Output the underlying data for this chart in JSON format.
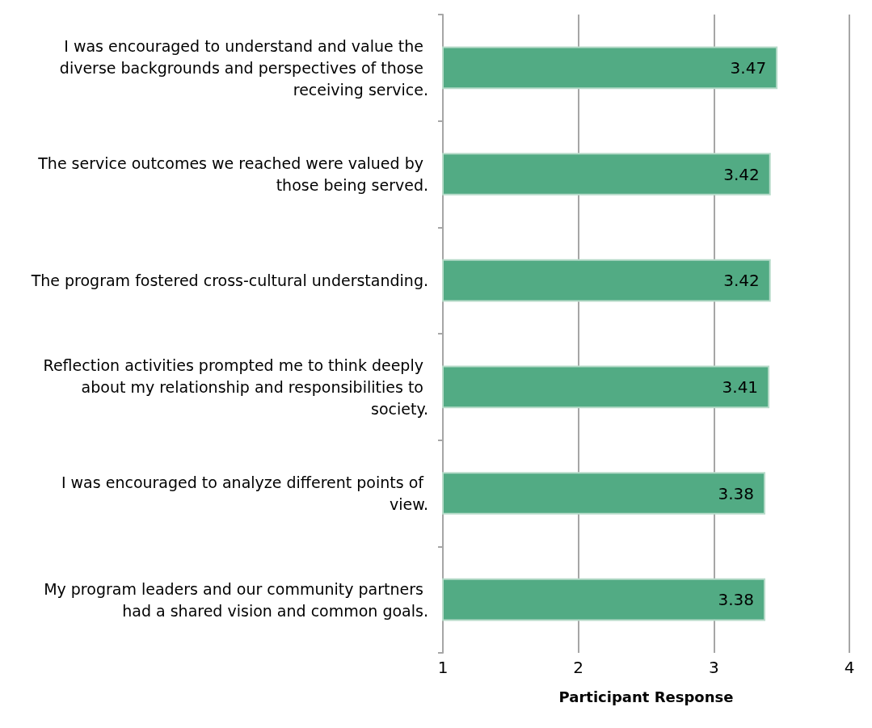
{
  "chart_data": {
    "type": "bar",
    "orientation": "horizontal",
    "xlabel": "Participant Response",
    "categories": [
      "I was encouraged to understand and value the diverse backgrounds and perspectives of those receiving service.",
      "The service outcomes we reached were valued by those being served.",
      "The program fostered cross-cultural understanding.",
      "Reflection activities prompted me to think deeply about my relationship and responsibilities to society.",
      "I was encouraged to analyze different points of view.",
      "My program leaders and our community partners had a shared vision and common goals."
    ],
    "values": [
      3.47,
      3.42,
      3.42,
      3.41,
      3.38,
      3.38
    ],
    "color": "#52ab84",
    "xlim": [
      1,
      4
    ],
    "xticks": [
      1,
      2,
      3,
      4
    ],
    "grid": "x",
    "data_labels": true
  }
}
